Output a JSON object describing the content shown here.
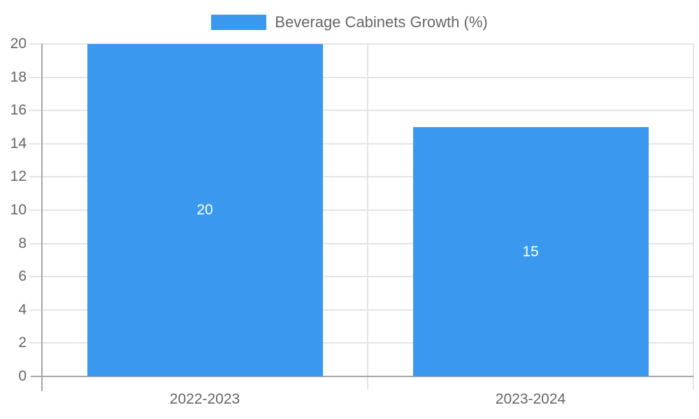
{
  "legend": {
    "label": "Beverage Cabinets Growth (%)"
  },
  "colors": {
    "bar": "#3a99ee",
    "axis": "#a6a6a6",
    "grid": "#e4e4e4",
    "tick_text": "#666666",
    "bar_label_text": "#ffffff"
  },
  "chart_data": {
    "type": "bar",
    "title": "Beverage Cabinets Growth (%)",
    "categories": [
      "2022-2023",
      "2023-2024"
    ],
    "values": [
      20,
      15
    ],
    "bar_labels": [
      "20",
      "15"
    ],
    "xlabel": "",
    "ylabel": "",
    "ylim": [
      0,
      20
    ],
    "yticks": [
      0,
      2,
      4,
      6,
      8,
      10,
      12,
      14,
      16,
      18,
      20
    ],
    "grid": true,
    "legend_position": "top-center",
    "legend_entries": [
      "Beverage Cabinets Growth (%)"
    ]
  }
}
